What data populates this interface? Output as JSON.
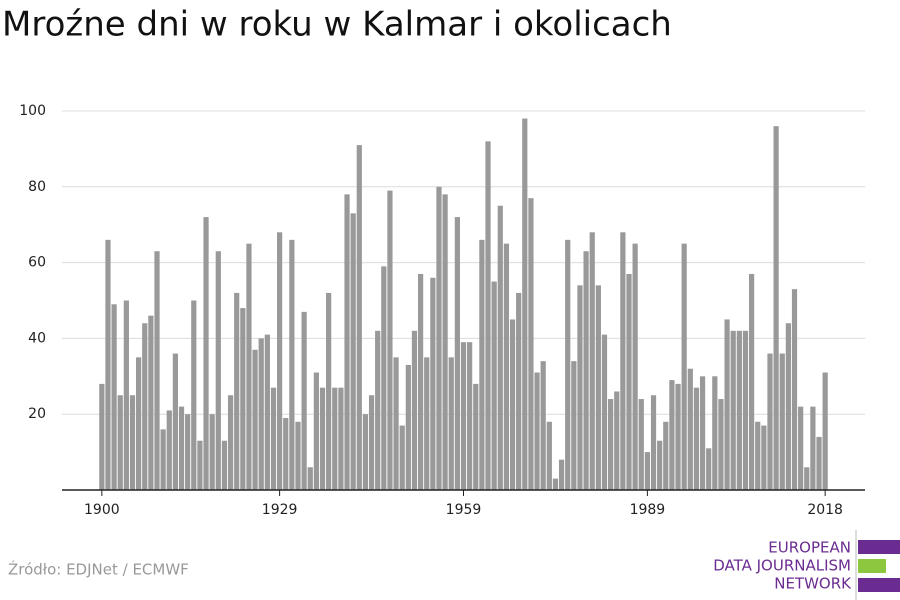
{
  "chart_data": {
    "type": "bar",
    "title": "Mroźne dni w roku w Kalmar i okolicach",
    "x": [
      1900,
      1901,
      1902,
      1903,
      1904,
      1905,
      1906,
      1907,
      1908,
      1909,
      1910,
      1911,
      1912,
      1913,
      1914,
      1915,
      1916,
      1917,
      1918,
      1919,
      1920,
      1921,
      1922,
      1923,
      1924,
      1925,
      1926,
      1927,
      1928,
      1929,
      1930,
      1931,
      1932,
      1933,
      1934,
      1935,
      1936,
      1937,
      1938,
      1939,
      1940,
      1941,
      1942,
      1943,
      1944,
      1945,
      1946,
      1947,
      1948,
      1949,
      1950,
      1951,
      1952,
      1953,
      1954,
      1955,
      1956,
      1957,
      1958,
      1959,
      1960,
      1961,
      1962,
      1963,
      1964,
      1965,
      1966,
      1967,
      1968,
      1969,
      1970,
      1971,
      1972,
      1973,
      1974,
      1975,
      1976,
      1977,
      1978,
      1979,
      1980,
      1981,
      1982,
      1983,
      1984,
      1985,
      1986,
      1987,
      1988,
      1989,
      1990,
      1991,
      1992,
      1993,
      1994,
      1995,
      1996,
      1997,
      1998,
      1999,
      2000,
      2001,
      2002,
      2003,
      2004,
      2005,
      2006,
      2007,
      2008,
      2009,
      2010,
      2011,
      2012,
      2013,
      2014,
      2015,
      2016,
      2017,
      2018
    ],
    "values": [
      28,
      66,
      49,
      25,
      50,
      25,
      35,
      44,
      46,
      63,
      16,
      21,
      36,
      22,
      20,
      50,
      13,
      72,
      20,
      63,
      13,
      25,
      52,
      48,
      65,
      37,
      40,
      41,
      27,
      68,
      19,
      66,
      18,
      47,
      6,
      31,
      27,
      52,
      27,
      27,
      78,
      73,
      91,
      20,
      25,
      42,
      59,
      79,
      35,
      17,
      33,
      42,
      57,
      35,
      56,
      80,
      78,
      35,
      72,
      39,
      39,
      28,
      66,
      92,
      55,
      75,
      65,
      45,
      52,
      98,
      77,
      31,
      34,
      18,
      3,
      8,
      66,
      34,
      54,
      63,
      68,
      54,
      41,
      24,
      26,
      68,
      57,
      65,
      24,
      10,
      25,
      13,
      18,
      29,
      28,
      65,
      32,
      27,
      30,
      11,
      30,
      24,
      45,
      42,
      42,
      42,
      57,
      18,
      17,
      36,
      96,
      36,
      44,
      53,
      22,
      6,
      22,
      14,
      31
    ],
    "color": "#999999",
    "xlim": [
      1893.5,
      2024.5
    ],
    "xticks": [
      1900,
      1929,
      1959,
      1989,
      2018
    ],
    "ylim": [
      0,
      100
    ],
    "yticks": [
      20,
      40,
      60,
      80,
      100
    ],
    "grid": true,
    "source": "Źródło: EDJNet / ECMWF",
    "logo": [
      "EUROPEAN",
      "DATA JOURNALISM",
      "NETWORK"
    ]
  }
}
